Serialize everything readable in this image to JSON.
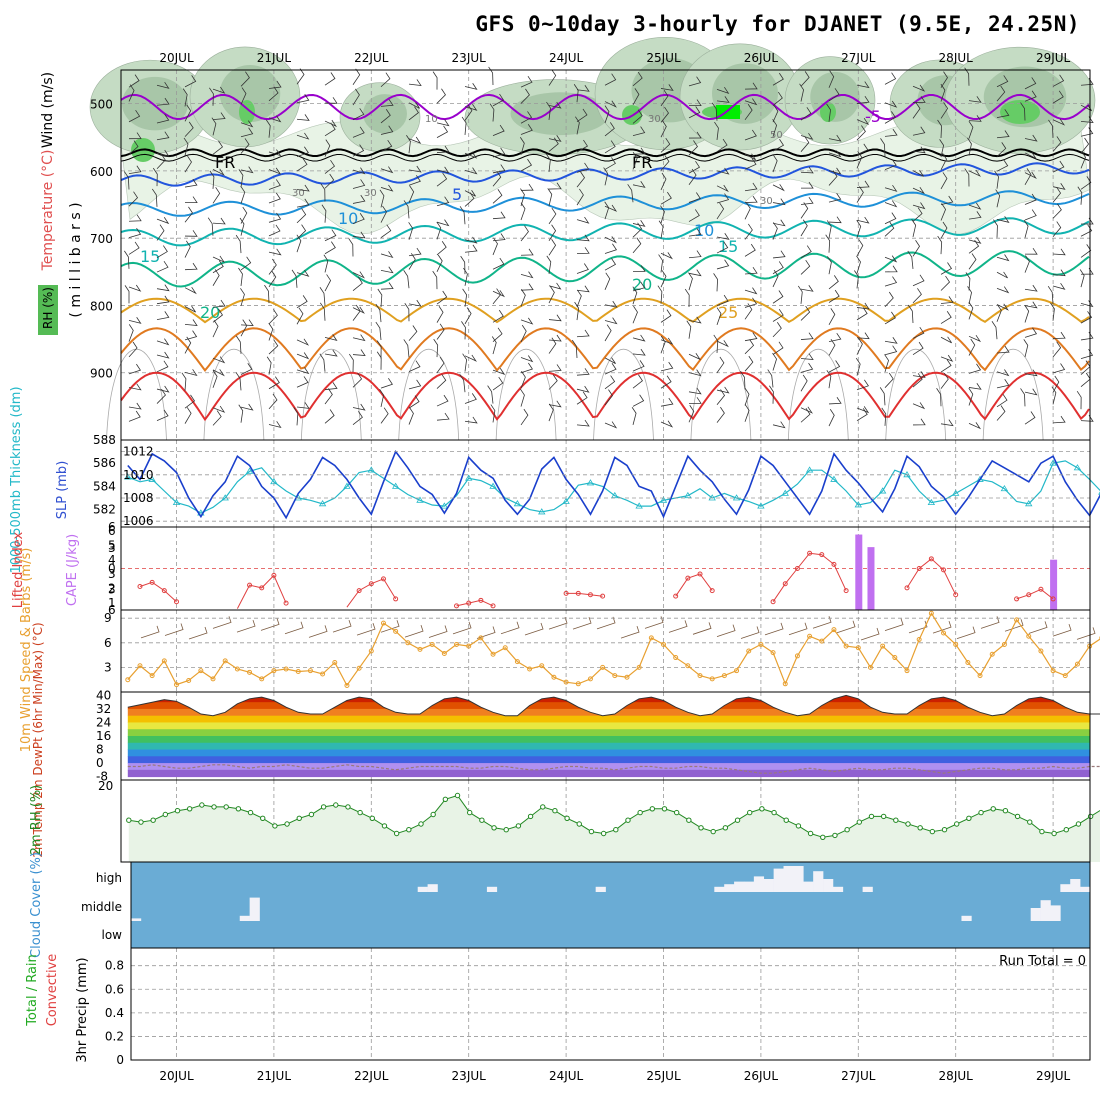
{
  "title": "GFS 0~10day 3-hourly for DJANET (9.5E, 24.25N)",
  "colors": {
    "rh_light": "#e8f3e6",
    "rh_mid": "#c5dcc4",
    "rh_dark": "#a8c6a8",
    "rh_bright": "#66cc66",
    "rh_max": "#00ee00",
    "t_minus5": "#9900cc",
    "t_0": "#000000",
    "t_5": "#2255dd",
    "t_10": "#1e90d8",
    "t_15": "#11b3b0",
    "t_20": "#10b489",
    "t_25": "#e0a020",
    "t_30": "#e07a20",
    "t_35": "#e03030",
    "slp": "#1a3fcc",
    "thickness": "#22b8c8",
    "lifted": "#e04040",
    "cape": "#c070f0",
    "wind10": "#e8a030",
    "rh2m": "#228822",
    "rh2m_fill": "#e8f3e6",
    "cloud": "#6aacd5",
    "cloud_clear": "#f2f2f8"
  },
  "chart_data": [
    {
      "panel": "upper-air",
      "type": "heatmap",
      "ylabel_parts": [
        "Wind (m/s)",
        "Temperature (°C)",
        "RH (%)",
        "( m i l l i b a r s )"
      ],
      "y_ticks": [
        500,
        600,
        700,
        800,
        900
      ],
      "ylim": [
        1000,
        450
      ],
      "contour_labels": [
        "-5",
        "FR",
        "FR",
        "5",
        "10",
        "10",
        "15",
        "15",
        "20",
        "20",
        "25",
        "10",
        "30",
        "30",
        "50",
        "30",
        "30"
      ],
      "temperature_levels": [
        -5,
        0,
        5,
        10,
        15,
        20,
        25,
        30,
        35
      ]
    },
    {
      "panel": "slp-thickness",
      "type": "line",
      "ylabel_left": "1000-500mb Thickness (dm)",
      "ylabel_right": "SLP (mb)",
      "left_ticks": [
        588,
        586,
        584,
        582
      ],
      "right_ticks": [
        1012,
        1010,
        1008,
        1006
      ],
      "ylim_left": [
        580.5,
        588
      ],
      "ylim_right": [
        1005.5,
        1013
      ],
      "series": [
        {
          "name": "SLP (mb)",
          "values": [
            1010.8,
            1009.6,
            1011.8,
            1011.2,
            1010.2,
            1008.0,
            1006.4,
            1008.2,
            1009.4,
            1011.6,
            1010.8,
            1009.0,
            1008.0,
            1006.3,
            1008.4,
            1009.6,
            1011.5,
            1010.8,
            1009.6,
            1008.0,
            1006.6,
            1009.4,
            1012.0,
            1010.6,
            1009.0,
            1008.3,
            1006.7,
            1008.4,
            1011.5,
            1010.4,
            1009.7,
            1007.8,
            1006.6,
            1007.9,
            1010.5,
            1011.5,
            1009.6,
            1008.3,
            1006.6,
            1008.6,
            1011.5,
            1010.8,
            1009.0,
            1008.6,
            1006.4,
            1009.0,
            1011.6,
            1010.4,
            1009.4,
            1007.9,
            1006.6,
            1008.7,
            1011.6,
            1010.8,
            1009.4,
            1008.0,
            1006.6,
            1008.6,
            1011.8,
            1010.4,
            1009.3,
            1008.0,
            1006.8,
            1008.8,
            1011.6,
            1010.7,
            1009.0,
            1008.1,
            1006.6,
            1008.0,
            1009.6,
            1011.2,
            1010.6,
            1010.0,
            1009.4,
            1011.0,
            1011.6,
            1009.4,
            1007.8,
            1006.5,
            1008.5,
            1010.4,
            1011.0
          ]
        },
        {
          "name": "1000-500mb Thickness (dm)",
          "values": [
            584.8,
            584.4,
            584.6,
            583.6,
            582.6,
            582.3,
            581.7,
            582.2,
            583.0,
            584.4,
            585.3,
            585.6,
            584.4,
            583.6,
            583.0,
            582.8,
            582.5,
            583.0,
            584.0,
            585.2,
            585.4,
            584.7,
            584.0,
            583.3,
            582.8,
            582.4,
            582.3,
            583.2,
            584.7,
            584.5,
            584.0,
            583.0,
            582.5,
            582.0,
            581.8,
            582.0,
            582.7,
            584.1,
            584.3,
            584.0,
            583.2,
            582.8,
            582.3,
            582.3,
            582.8,
            583.0,
            583.2,
            583.8,
            583.0,
            583.4,
            583.0,
            582.7,
            582.3,
            582.8,
            583.4,
            584.2,
            585.4,
            585.4,
            584.6,
            583.6,
            582.4,
            582.6,
            583.6,
            585.4,
            585.0,
            583.6,
            582.6,
            582.8,
            583.4,
            584.0,
            584.6,
            584.4,
            583.8,
            582.7,
            582.5,
            583.6,
            586.0,
            586.2,
            585.6,
            584.6,
            583.5,
            583.6,
            584.6
          ]
        }
      ]
    },
    {
      "panel": "lifted-cape",
      "type": "bar",
      "ylabel_left": "Lifted Index",
      "ylabel_right": "CAPE (J/kg)",
      "left_ticks": [
        "6",
        "3",
        "0",
        "3",
        "6"
      ],
      "right_ticks": [
        "6",
        "5",
        "4",
        "3",
        "2",
        "1"
      ],
      "series": [
        {
          "name": "Lifted Index",
          "values": [
            null,
            2.6,
            2.0,
            3.2,
            4.8,
            null,
            null,
            null,
            null,
            5.8,
            2.4,
            2.8,
            1.0,
            5.0,
            null,
            null,
            null,
            null,
            5.6,
            3.2,
            2.2,
            1.5,
            4.4,
            null,
            null,
            null,
            null,
            5.4,
            5.0,
            4.6,
            5.4,
            null,
            null,
            null,
            null,
            null,
            3.6,
            3.6,
            3.8,
            4.0,
            null,
            null,
            null,
            null,
            null,
            4.0,
            1.4,
            0.8,
            3.2,
            null,
            null,
            null,
            null,
            4.8,
            2.2,
            0.0,
            -2.2,
            -2.0,
            -0.6,
            3.2,
            null,
            null,
            null,
            null,
            2.8,
            0.0,
            -1.4,
            0.2,
            3.8,
            null,
            null,
            null,
            null,
            4.4,
            3.8,
            3.0,
            4.4,
            null,
            null,
            null,
            null,
            3.6,
            -1.2,
            -0.4,
            0.6,
            2.0,
            4.0,
            null
          ]
        },
        {
          "name": "CAPE (J/kg)",
          "x_index": [
            60,
            61,
            76
          ],
          "values": [
            6.0,
            5.0,
            4.0
          ]
        }
      ]
    },
    {
      "panel": "wind10m",
      "type": "line",
      "ylabel": "10m Wind Speed & Barbs (m/s)",
      "y_ticks": [
        9,
        6,
        3
      ],
      "ylim": [
        0,
        10
      ],
      "series": [
        {
          "name": "10m Wind Speed",
          "values": [
            1.5,
            3.2,
            2.0,
            3.8,
            0.9,
            1.4,
            2.6,
            1.6,
            3.8,
            2.8,
            2.4,
            1.6,
            2.6,
            2.8,
            2.5,
            2.6,
            2.2,
            3.6,
            0.8,
            2.9,
            5.0,
            8.4,
            7.4,
            6.0,
            5.2,
            5.8,
            4.7,
            5.8,
            5.6,
            6.6,
            4.6,
            5.4,
            3.7,
            2.8,
            3.2,
            1.8,
            1.2,
            1.0,
            1.6,
            3.0,
            2.0,
            1.8,
            3.0,
            6.6,
            5.8,
            4.2,
            3.2,
            2.0,
            1.6,
            2.0,
            2.6,
            5.0,
            5.8,
            4.8,
            1.0,
            4.4,
            6.8,
            6.2,
            7.6,
            5.6,
            5.4,
            3.0,
            5.6,
            4.2,
            2.6,
            6.4,
            9.6,
            7.2,
            5.8,
            3.6,
            2.0,
            4.6,
            5.8,
            8.8,
            6.8,
            5.0,
            2.6,
            2.0,
            3.4,
            5.6,
            6.6,
            4.2,
            1.2
          ]
        }
      ]
    },
    {
      "panel": "temp2m",
      "type": "area",
      "ylabel": "2m Temp 2m DewPt (6hr Min/Max) (°C)",
      "y_ticks": [
        40,
        32,
        24,
        16,
        8,
        0,
        -8
      ],
      "ylim": [
        -10,
        42
      ],
      "series": [
        {
          "name": "2m Temp",
          "values": [
            33,
            34.5,
            36,
            37.5,
            36.5,
            33,
            29,
            28,
            30,
            35,
            38,
            39,
            37,
            33,
            30,
            29,
            29,
            33,
            37,
            39,
            38,
            33,
            30,
            29,
            29,
            34,
            38,
            39,
            37,
            33,
            30,
            28,
            28,
            34,
            38,
            39,
            37,
            33,
            30,
            28,
            29,
            34,
            38,
            39,
            37,
            33,
            30,
            28,
            29,
            34,
            38,
            39,
            37,
            33,
            30,
            28,
            29,
            34,
            38,
            40,
            38,
            33,
            30,
            29,
            29,
            34,
            38,
            39,
            37,
            33,
            30,
            28,
            29,
            34,
            38,
            39,
            37,
            33,
            30,
            29,
            29,
            34,
            38,
            40,
            38,
            33,
            30,
            29,
            29
          ]
        },
        {
          "name": "2m DewPt",
          "values": [
            -2,
            -2,
            -1,
            -2,
            -3,
            -3,
            -2,
            -1,
            -1,
            -2,
            -3,
            -2,
            -2,
            -1,
            -2,
            -3,
            -3,
            -2,
            -1,
            -2,
            -2,
            -3,
            -4,
            -3,
            -2,
            -2,
            -2,
            -2,
            -3,
            -3,
            -2,
            -2,
            -3,
            -4,
            -4,
            -3,
            -2,
            -2,
            -3,
            -3,
            -4,
            -3,
            -2,
            -2,
            -3,
            -3,
            -2,
            -2,
            -3,
            -3,
            -4,
            -5,
            -6,
            -6,
            -5,
            -4,
            -3,
            -4,
            -5,
            -4,
            -3,
            -4,
            -4,
            -3,
            -3,
            -4,
            -5,
            -6,
            -5,
            -4,
            -3,
            -3,
            -4,
            -4,
            -3,
            -3,
            -2,
            -3,
            -3,
            -2,
            -2,
            -3,
            -3
          ]
        }
      ]
    },
    {
      "panel": "rh2m",
      "type": "area",
      "ylabel": "2m RH (%)",
      "y_ticks": [
        20
      ],
      "ylim": [
        0,
        20
      ],
      "series": [
        {
          "name": "2m RH",
          "values": [
            11.0,
            10.5,
            11.0,
            12.5,
            13.5,
            14.0,
            15.0,
            14.5,
            14.5,
            14.0,
            13.0,
            11.5,
            9.5,
            10.0,
            11.5,
            12.5,
            14.5,
            15.0,
            14.5,
            13.0,
            11.5,
            9.5,
            7.5,
            8.5,
            10.0,
            12.5,
            16.5,
            17.5,
            13.0,
            11.0,
            9.0,
            8.5,
            9.5,
            12.0,
            14.5,
            13.5,
            11.5,
            10.0,
            8.0,
            7.5,
            8.5,
            11.0,
            13.0,
            14.0,
            14.0,
            13.0,
            11.0,
            9.0,
            8.0,
            9.0,
            11.0,
            13.0,
            14.0,
            13.0,
            11.0,
            9.5,
            7.5,
            6.5,
            7.0,
            8.5,
            10.5,
            12.0,
            12.0,
            11.0,
            10.0,
            9.0,
            8.0,
            8.5,
            10.0,
            11.5,
            13.0,
            14.0,
            13.5,
            12.0,
            10.5,
            8.0,
            7.5,
            8.5,
            10.0,
            12.0,
            14.0,
            14.5,
            13.5,
            12.0
          ]
        }
      ]
    },
    {
      "panel": "cloud",
      "type": "bar",
      "ylabel": "Cloud Cover (%)",
      "y_ticks": [
        "high",
        "middle",
        "low"
      ],
      "series": [
        {
          "name": "high",
          "values": [
            0,
            0,
            0,
            0,
            0,
            0,
            0,
            0,
            0,
            0,
            0,
            0,
            0,
            0,
            0,
            0,
            0,
            0,
            0,
            0,
            0,
            0,
            0,
            0,
            0,
            0,
            0,
            0,
            0,
            0.2,
            0.3,
            0,
            0,
            0,
            0,
            0,
            0.2,
            0,
            0,
            0,
            0,
            0,
            0,
            0,
            0,
            0,
            0,
            0.2,
            0,
            0,
            0,
            0,
            0,
            0,
            0,
            0,
            0,
            0,
            0,
            0.2,
            0.3,
            0.4,
            0.4,
            0.6,
            0.5,
            0.9,
            1,
            1,
            0.4,
            0.8,
            0.5,
            0.2,
            0,
            0,
            0.2,
            0,
            0,
            0,
            0,
            0,
            0,
            0,
            0,
            0,
            0,
            0,
            0,
            0,
            0,
            0,
            0,
            0,
            0,
            0,
            0.3,
            0.5,
            0.2
          ]
        },
        {
          "name": "middle",
          "values": [
            0.1,
            0,
            0,
            0,
            0,
            0,
            0,
            0,
            0,
            0,
            0,
            0.2,
            0.9,
            0,
            0,
            0,
            0,
            0,
            0,
            0,
            0,
            0,
            0,
            0,
            0,
            0,
            0,
            0,
            0,
            0,
            0,
            0,
            0,
            0,
            0,
            0,
            0,
            0,
            0,
            0,
            0,
            0,
            0,
            0,
            0,
            0,
            0,
            0,
            0,
            0,
            0,
            0,
            0,
            0,
            0,
            0,
            0,
            0,
            0,
            0,
            0,
            0,
            0,
            0,
            0,
            0,
            0,
            0,
            0,
            0,
            0,
            0,
            0,
            0,
            0,
            0,
            0,
            0,
            0,
            0,
            0,
            0,
            0,
            0,
            0.2,
            0,
            0,
            0,
            0,
            0,
            0,
            0.5,
            0.8,
            0.6,
            0,
            0,
            0,
            0,
            0,
            0,
            0,
            0,
            0.2,
            0,
            0
          ]
        }
      ]
    },
    {
      "panel": "precip",
      "type": "bar",
      "ylabel": "3hr Precip (mm)",
      "ylabel_parts": [
        "Total / Rain",
        "Convective"
      ],
      "y_ticks": [
        "0.8",
        "0.6",
        "0.4",
        "0.2",
        "0"
      ],
      "ylim": [
        0,
        0.95
      ],
      "annotation": "Run Total = 0",
      "series": [
        {
          "name": "Total / Rain",
          "values": []
        }
      ]
    }
  ],
  "x_axis": {
    "labels": [
      "20JUL",
      "21JUL",
      "22JUL",
      "23JUL",
      "24JUL",
      "25JUL",
      "26JUL",
      "27JUL",
      "28JUL",
      "29JUL"
    ]
  }
}
